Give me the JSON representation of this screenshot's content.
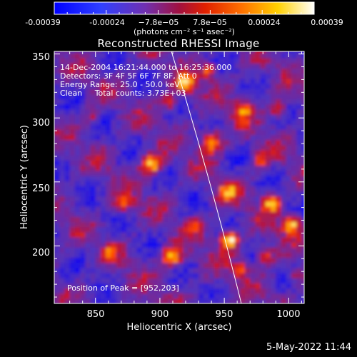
{
  "colorbar": {
    "ticks": [
      "-0.00039",
      "-0.00024",
      "−7.8e−05",
      "7.8e−05",
      "0.00024",
      "0.00039"
    ],
    "units_line": "(photons cm⁻² s⁻¹ asec⁻²)"
  },
  "title": "Reconstructed RHESSI Image",
  "annotations": {
    "time_range": "14-Dec-2004 16:21:44.000 to 16:25:36.000",
    "detectors": "Detectors: 3F 4F 5F 6F 7F 8F, Att 0",
    "energy": "Energy Range: 25.0 - 50.0 keV",
    "clean": "Clean     Total counts: 3.73E+03",
    "peak": "Position of Peak = [952,203]"
  },
  "x_axis": {
    "label": "Heliocentric X (arcsec)",
    "ticks": [
      "850",
      "900",
      "950",
      "1000"
    ]
  },
  "y_axis": {
    "label": "Heliocentric Y (arcsec)",
    "ticks": [
      "200",
      "250",
      "300",
      "350"
    ]
  },
  "footer": {
    "timestamp": "5-May-2022 11:44"
  },
  "chart_data": {
    "type": "heatmap",
    "title": "Reconstructed RHESSI Image",
    "xlabel": "Heliocentric X (arcsec)",
    "ylabel": "Heliocentric Y (arcsec)",
    "xlim": [
      818,
      1012
    ],
    "ylim": [
      155,
      352
    ],
    "colorbar_range": [
      -0.00039,
      0.00039
    ],
    "peak": {
      "x": 952,
      "y": 203
    },
    "colormap": [
      "#0000ff",
      "#5a3cff",
      "#7a2a9a",
      "#c0102a",
      "#ff4000",
      "#ffb000",
      "#ffffff"
    ]
  }
}
